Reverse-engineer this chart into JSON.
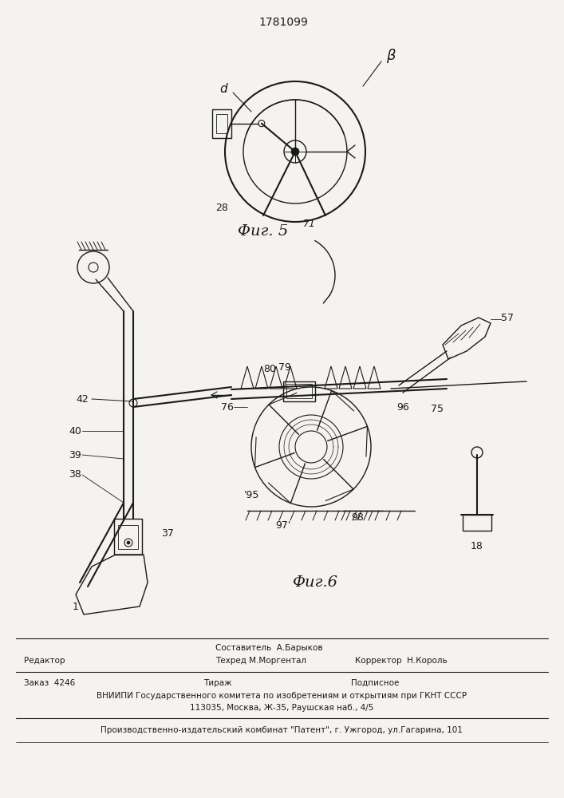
{
  "patent_number": "1781099",
  "bg_color": "#f5f3ef",
  "line_color": "#1a1a1a",
  "fig5_label": "Φиг. 5",
  "fig6_label": "Φиг.6",
  "footer": {
    "editor_label": "Редактор",
    "composer": "Составитель  А.Барыков",
    "techred": "Техред М.Моргентал",
    "corrector": "Корректор  Н.Король",
    "order": "Заказ  4246",
    "tirazh": "Тираж",
    "podpisnoe": "Подписное",
    "vniipи": "ВНИИПИ Государственного комитета по изобретениям и открытиям при ГКНТ СССР",
    "address": "113035, Москва, Ж-35, Раушская наб., 4/5",
    "producer": "Производственно-издательский комбинат \"Патент\", г. Ужгород, ул.Гагарина, 101"
  }
}
